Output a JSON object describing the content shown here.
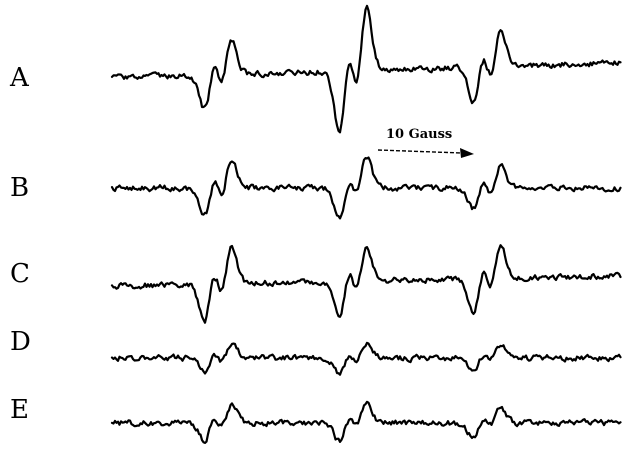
{
  "chart_data": {
    "type": "line",
    "title": "",
    "xlabel": "",
    "ylabel": "",
    "grid": false,
    "traces": [
      {
        "label": "A",
        "color": "#000000",
        "line_pairs": [
          0.55,
          1.0,
          0.55
        ]
      },
      {
        "label": "B",
        "color": "#000000",
        "line_pairs": [
          0.45,
          0.5,
          0.35
        ]
      },
      {
        "label": "C",
        "color": "#000000",
        "line_pairs": [
          0.6,
          0.55,
          0.55
        ]
      },
      {
        "label": "D",
        "color": "#000000",
        "line_pairs": [
          0.22,
          0.25,
          0.2
        ]
      },
      {
        "label": "E",
        "color": "#000000",
        "line_pairs": [
          0.28,
          0.3,
          0.25
        ]
      }
    ],
    "scale_bar": {
      "label": "10 Gauss"
    }
  }
}
